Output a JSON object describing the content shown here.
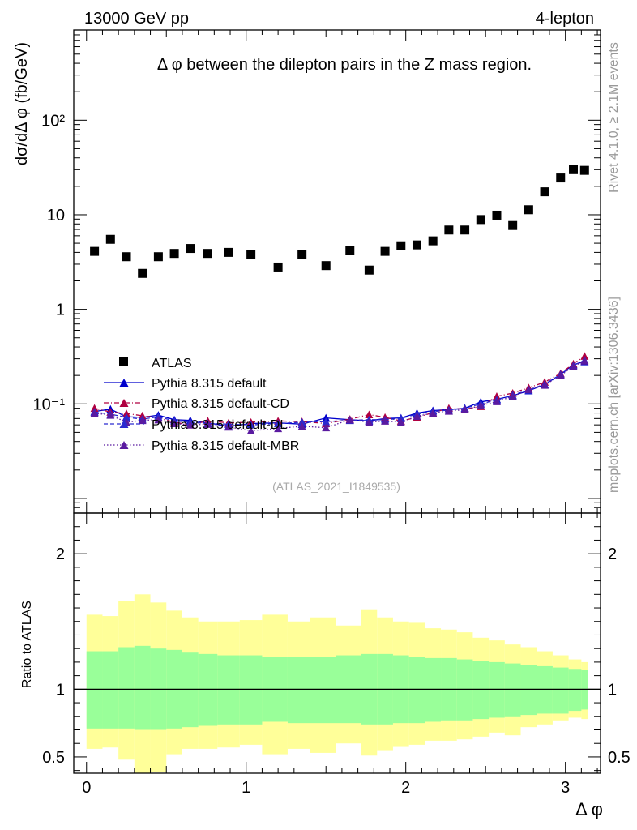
{
  "header": {
    "energy_label": "13000 GeV pp",
    "process_label": "4-lepton",
    "rivet_label": "Rivet 4.1.0, ≥ 2.1M events",
    "mcplots_label": "mcplots.cern.ch [arXiv:1306.3436]",
    "analysis_label": "(ATLAS_2021_I1849535)"
  },
  "colors": {
    "data": "#000000",
    "default": "#0000cc",
    "cd": "#b00040",
    "dl": "#2a2ad0",
    "mbr": "#5a1aa0",
    "band_inner": "#99ff99",
    "band_outer": "#ffff99"
  },
  "chart_data": {
    "type": "scatter",
    "title": "Δ φ between the dilepton pairs in the Z mass region.",
    "xlabel": "Δ φ",
    "ylabel": "dσ/dΔ φ (fb/GeV)",
    "ratio_ylabel": "Ratio to ATLAS",
    "yscale": "log",
    "xlim": [
      -0.08,
      3.22
    ],
    "ylim": [
      0.007,
      900
    ],
    "ratio_ylim": [
      0.38,
      2.3
    ],
    "x_ticks": [
      "0",
      "1",
      "2",
      "3"
    ],
    "y_ticks": [
      "10⁻¹",
      "1",
      "10",
      "10²"
    ],
    "ratio_ticks": [
      "0.5",
      "1",
      "2"
    ],
    "bin_edges": [
      0,
      0.1,
      0.2,
      0.3,
      0.4,
      0.5,
      0.6,
      0.7,
      0.82,
      0.96,
      1.1,
      1.26,
      1.4,
      1.56,
      1.72,
      1.82,
      1.92,
      2.02,
      2.12,
      2.22,
      2.32,
      2.42,
      2.52,
      2.62,
      2.72,
      2.82,
      2.92,
      3.02,
      3.1,
      3.14
    ],
    "legend": [
      {
        "label": "ATLAS",
        "style": "square"
      },
      {
        "label": "Pythia 8.315 default",
        "style": "solid"
      },
      {
        "label": "Pythia 8.315 default-CD",
        "style": "dashdot"
      },
      {
        "label": "Pythia 8.315 default-DL",
        "style": "dashed"
      },
      {
        "label": "Pythia 8.315 default-MBR",
        "style": "dotted"
      }
    ],
    "series": [
      {
        "name": "ATLAS",
        "key": "data",
        "x": [
          0.05,
          0.15,
          0.25,
          0.35,
          0.45,
          0.55,
          0.65,
          0.76,
          0.89,
          1.03,
          1.2,
          1.35,
          1.5,
          1.65,
          1.77,
          1.87,
          1.97,
          2.07,
          2.17,
          2.27,
          2.37,
          2.47,
          2.57,
          2.67,
          2.77,
          2.87,
          2.97,
          3.05,
          3.12
        ],
        "values": [
          4.1,
          5.5,
          3.6,
          2.4,
          3.6,
          3.9,
          4.4,
          3.9,
          4.0,
          3.8,
          2.8,
          3.8,
          2.9,
          4.2,
          2.6,
          4.1,
          4.7,
          4.8,
          5.3,
          6.9,
          6.9,
          8.9,
          9.9,
          7.7,
          11.3,
          17.5,
          24.5,
          30.0,
          29.5
        ]
      },
      {
        "name": "Pythia 8.315 default",
        "key": "default",
        "x": [
          0.05,
          0.15,
          0.25,
          0.35,
          0.45,
          0.55,
          0.65,
          0.76,
          0.89,
          1.03,
          1.2,
          1.35,
          1.5,
          1.65,
          1.77,
          1.87,
          1.97,
          2.07,
          2.17,
          2.27,
          2.37,
          2.47,
          2.57,
          2.67,
          2.77,
          2.87,
          2.97,
          3.05,
          3.12
        ],
        "values": [
          0.083,
          0.088,
          0.073,
          0.072,
          0.076,
          0.068,
          0.067,
          0.063,
          0.058,
          0.062,
          0.063,
          0.061,
          0.071,
          0.068,
          0.066,
          0.07,
          0.071,
          0.08,
          0.085,
          0.087,
          0.09,
          0.105,
          0.112,
          0.122,
          0.138,
          0.16,
          0.205,
          0.26,
          0.28
        ]
      },
      {
        "name": "Pythia 8.315 default-CD",
        "key": "cd",
        "x": [
          0.05,
          0.15,
          0.25,
          0.35,
          0.45,
          0.55,
          0.65,
          0.76,
          0.89,
          1.03,
          1.2,
          1.35,
          1.5,
          1.65,
          1.77,
          1.87,
          1.97,
          2.07,
          2.17,
          2.27,
          2.37,
          2.47,
          2.57,
          2.67,
          2.77,
          2.87,
          2.97,
          3.05,
          3.12
        ],
        "values": [
          0.09,
          0.082,
          0.079,
          0.075,
          0.071,
          0.064,
          0.06,
          0.066,
          0.063,
          0.064,
          0.066,
          0.065,
          0.062,
          0.069,
          0.077,
          0.072,
          0.066,
          0.072,
          0.081,
          0.09,
          0.088,
          0.094,
          0.12,
          0.13,
          0.148,
          0.17,
          0.21,
          0.265,
          0.32
        ]
      },
      {
        "name": "Pythia 8.315 default-DL",
        "key": "dl",
        "x": [
          0.05,
          0.15,
          0.25,
          0.35,
          0.45,
          0.55,
          0.65,
          0.76,
          0.89,
          1.03,
          1.2,
          1.35,
          1.5,
          1.65,
          1.77,
          1.87,
          1.97,
          2.07,
          2.17,
          2.27,
          2.37,
          2.47,
          2.57,
          2.67,
          2.77,
          2.87,
          2.97,
          3.05,
          3.12
        ],
        "values": [
          0.082,
          0.078,
          0.072,
          0.069,
          0.073,
          0.066,
          0.064,
          0.062,
          0.061,
          0.06,
          0.062,
          0.064,
          0.065,
          0.067,
          0.068,
          0.068,
          0.07,
          0.078,
          0.083,
          0.086,
          0.09,
          0.1,
          0.11,
          0.124,
          0.14,
          0.162,
          0.205,
          0.255,
          0.29
        ]
      },
      {
        "name": "Pythia 8.315 default-MBR",
        "key": "mbr",
        "x": [
          0.05,
          0.15,
          0.25,
          0.35,
          0.45,
          0.55,
          0.65,
          0.76,
          0.89,
          1.03,
          1.2,
          1.35,
          1.5,
          1.65,
          1.77,
          1.87,
          1.97,
          2.07,
          2.17,
          2.27,
          2.37,
          2.47,
          2.57,
          2.67,
          2.77,
          2.87,
          2.97,
          3.05,
          3.12
        ],
        "values": [
          0.08,
          0.076,
          0.064,
          0.067,
          0.068,
          0.062,
          0.06,
          0.061,
          0.057,
          0.052,
          0.055,
          0.058,
          0.056,
          0.068,
          0.064,
          0.066,
          0.064,
          0.074,
          0.08,
          0.084,
          0.087,
          0.096,
          0.106,
          0.12,
          0.142,
          0.158,
          0.2,
          0.25,
          0.285
        ]
      }
    ],
    "ratio_band_inner": {
      "low": [
        0.71,
        0.71,
        0.71,
        0.7,
        0.7,
        0.71,
        0.72,
        0.73,
        0.74,
        0.74,
        0.76,
        0.75,
        0.75,
        0.75,
        0.74,
        0.74,
        0.75,
        0.75,
        0.76,
        0.77,
        0.77,
        0.78,
        0.79,
        0.8,
        0.81,
        0.82,
        0.82,
        0.84,
        0.85
      ],
      "high": [
        1.28,
        1.28,
        1.31,
        1.32,
        1.3,
        1.29,
        1.27,
        1.26,
        1.25,
        1.25,
        1.24,
        1.24,
        1.24,
        1.25,
        1.26,
        1.26,
        1.25,
        1.24,
        1.23,
        1.23,
        1.22,
        1.21,
        1.2,
        1.19,
        1.18,
        1.17,
        1.16,
        1.15,
        1.14
      ]
    },
    "ratio_band_outer": {
      "low": [
        0.56,
        0.57,
        0.48,
        0.33,
        0.39,
        0.52,
        0.56,
        0.56,
        0.57,
        0.59,
        0.52,
        0.56,
        0.53,
        0.6,
        0.51,
        0.55,
        0.58,
        0.59,
        0.62,
        0.62,
        0.63,
        0.65,
        0.68,
        0.66,
        0.72,
        0.74,
        0.77,
        0.79,
        0.78
      ],
      "high": [
        1.55,
        1.54,
        1.65,
        1.7,
        1.64,
        1.58,
        1.53,
        1.5,
        1.5,
        1.51,
        1.55,
        1.5,
        1.53,
        1.47,
        1.59,
        1.53,
        1.5,
        1.49,
        1.45,
        1.44,
        1.42,
        1.38,
        1.36,
        1.33,
        1.31,
        1.28,
        1.25,
        1.22,
        1.2
      ]
    }
  }
}
